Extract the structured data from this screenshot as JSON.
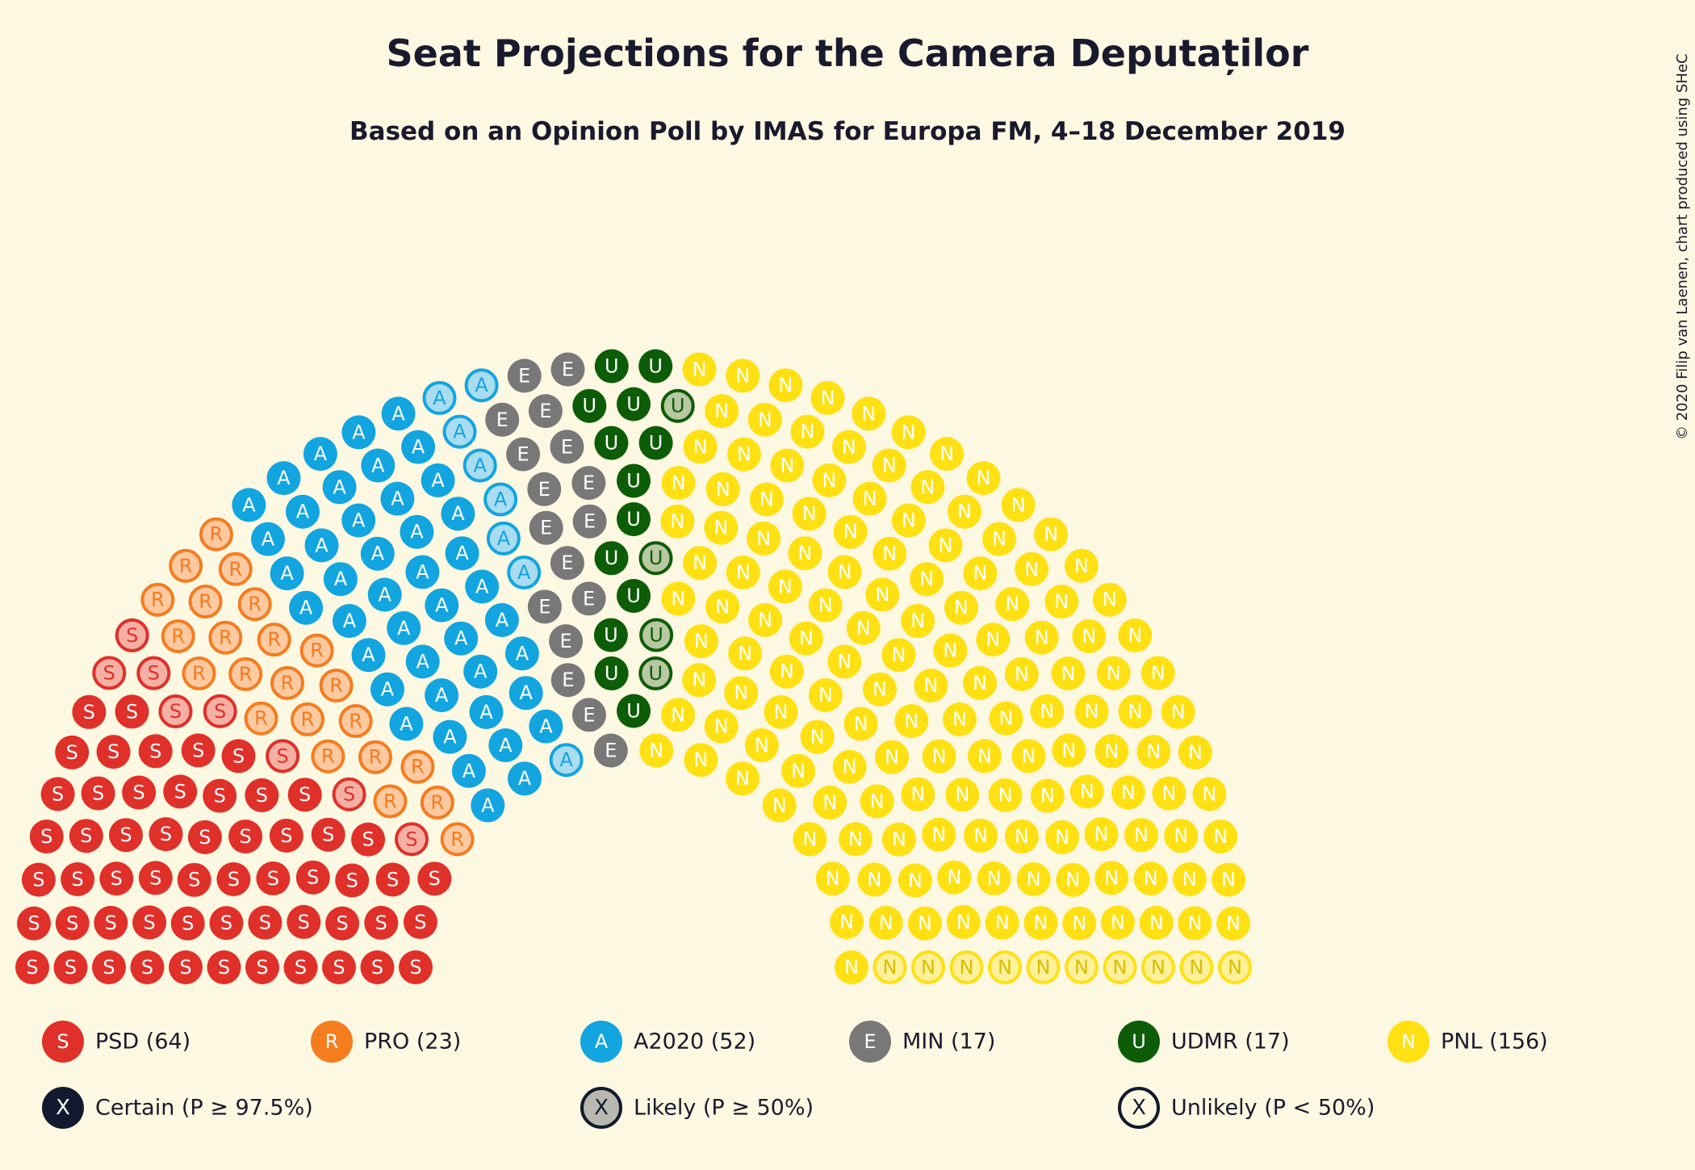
{
  "chart_data": {
    "type": "parliament",
    "title": "Seat Projections for the Camera Deputaților",
    "subtitle": "Based on an Opinion Poll by IMAS for Europa FM, 4–18 December 2019",
    "copyright": "© 2020 Filip van Laenen, chart produced using SHeC",
    "total_seats": 329,
    "parties": [
      {
        "abbr": "PSD",
        "letter": "S",
        "seats": 64,
        "certain": 56,
        "likely": 8,
        "unlikely": 0,
        "label": "PSD (64)",
        "color": "#e0302a",
        "light": "#f4b0a4"
      },
      {
        "abbr": "PRO",
        "letter": "R",
        "seats": 23,
        "certain": 0,
        "likely": 23,
        "unlikely": 0,
        "label": "PRO (23)",
        "color": "#f57c1f",
        "light": "#fcc9a0"
      },
      {
        "abbr": "A2020",
        "letter": "A",
        "seats": 52,
        "certain": 44,
        "likely": 8,
        "unlikely": 0,
        "label": "A2020 (52)",
        "color": "#12a5e0",
        "light": "#a9dcef"
      },
      {
        "abbr": "MIN",
        "letter": "E",
        "seats": 17,
        "certain": 17,
        "likely": 0,
        "unlikely": 0,
        "label": "MIN (17)",
        "color": "#787878",
        "light": "#c8c8c8"
      },
      {
        "abbr": "UDMR",
        "letter": "U",
        "seats": 17,
        "certain": 13,
        "likely": 4,
        "unlikely": 0,
        "label": "UDMR (17)",
        "color": "#0d5c08",
        "light": "#b7c8a2"
      },
      {
        "abbr": "PNL",
        "letter": "N",
        "seats": 156,
        "certain": 146,
        "likely": 0,
        "unlikely": 10,
        "label": "PNL (156)",
        "color": "#ffe013",
        "light": "#fff09a"
      }
    ],
    "certainty_legend": [
      {
        "letter": "X",
        "kind": "certain",
        "label": "Certain (P ≥ 97.5%)"
      },
      {
        "letter": "X",
        "kind": "likely",
        "label": "Likely (P ≥ 50%)"
      },
      {
        "letter": "X",
        "kind": "unlikely",
        "label": "Unlikely (P < 50%)"
      }
    ]
  }
}
